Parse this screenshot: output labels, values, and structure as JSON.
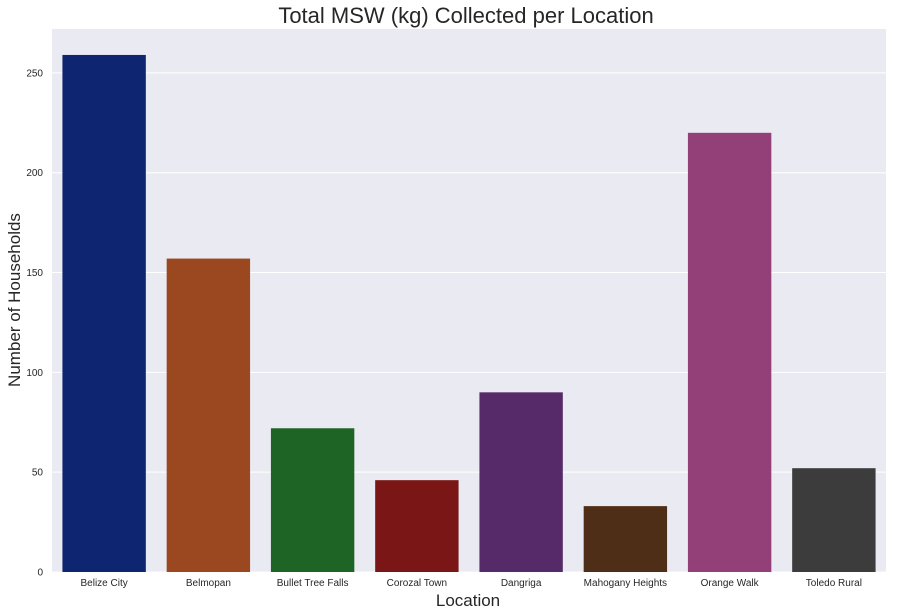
{
  "chart_data": {
    "type": "bar",
    "title": "Total MSW (kg) Collected per Location",
    "xlabel": "Location",
    "ylabel": "Number of Households",
    "categories": [
      "Belize City",
      "Belmopan",
      "Bullet Tree Falls",
      "Corozal Town",
      "Dangriga",
      "Mahogany Heights",
      "Orange Walk",
      "Toledo Rural"
    ],
    "values": [
      259,
      157,
      72,
      46,
      90,
      33,
      220,
      52
    ],
    "ylim": [
      0,
      272
    ],
    "yticks": [
      0,
      50,
      100,
      150,
      200,
      250
    ],
    "grid": true,
    "legend": "none",
    "colors": [
      "#0e2672",
      "#9b4720",
      "#1e6424",
      "#7b1616",
      "#562a69",
      "#4f2e17",
      "#934079",
      "#3c3c3c"
    ],
    "background": "#eaeaf2"
  }
}
